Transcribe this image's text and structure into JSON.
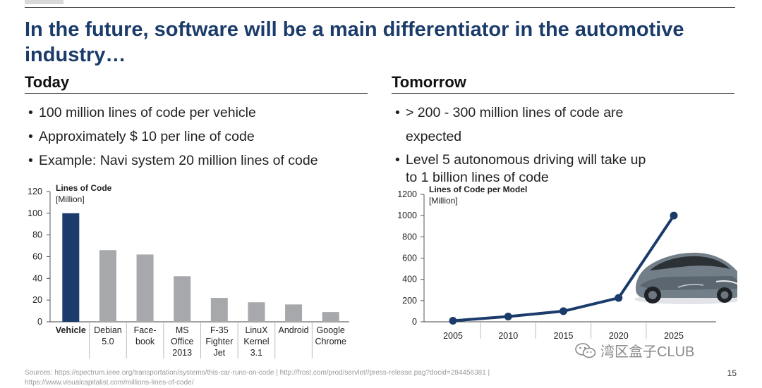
{
  "slide": {
    "title": "In the future, software will be a main differentiator in the automotive industry…",
    "page_number": "15"
  },
  "today": {
    "heading": "Today",
    "bullets": [
      "100 million lines of code per vehicle",
      "Approximately $ 10 per line of code",
      "Example: Navi system 20 million lines of code"
    ]
  },
  "tomorrow": {
    "heading": "Tomorrow",
    "bullets": [
      "> 200 - 300 million lines of code are expected",
      "Level 5 autonomous driving will take up to 1 billion lines of code"
    ]
  },
  "footer": {
    "sources": "Sources: https://spectrum.ieee.org/transportation/systems/this-car-runs-on-code | http://frost.com/prod/servlet//press-release.pag?docid=284456381 | https://www.visualcapitalist.com/millions-lines-of-code/"
  },
  "watermark": {
    "text": "湾区盒子CLUB",
    "icon": "wechat-icon"
  },
  "colors": {
    "accent": "#1b3c6b",
    "bar_highlight": "#1b3c6b",
    "bar_default": "#a6a8ab",
    "line": "#1b3c6b"
  },
  "chart_data": [
    {
      "type": "bar",
      "title": "Lines of Code",
      "unit": "[Million]",
      "categories": [
        "Vehicle",
        "Debian 5.0",
        "Face-book",
        "MS Office 2013",
        "F-35 Fighter Jet",
        "LinuX Kernel 3.1",
        "Android",
        "Google Chrome"
      ],
      "category_lines": [
        [
          "Vehicle"
        ],
        [
          "Debian",
          "5.0"
        ],
        [
          "Face-",
          "book"
        ],
        [
          "MS",
          "Office",
          "2013"
        ],
        [
          "F-35",
          "Fighter",
          "Jet"
        ],
        [
          "LinuX",
          "Kernel",
          "3.1"
        ],
        [
          "Android"
        ],
        [
          "Google",
          "Chrome"
        ]
      ],
      "values": [
        100,
        66,
        62,
        42,
        22,
        18,
        16,
        9
      ],
      "highlight_index": 0,
      "ylim": [
        0,
        120
      ],
      "yticks": [
        0,
        20,
        40,
        60,
        80,
        100,
        120
      ]
    },
    {
      "type": "line",
      "title": "Lines of Code per Model",
      "unit": "[Million]",
      "x": [
        "2005",
        "2010",
        "2015",
        "2020",
        "2025"
      ],
      "values": [
        10,
        50,
        100,
        225,
        1000
      ],
      "ylim": [
        0,
        1200
      ],
      "yticks": [
        0,
        200,
        400,
        600,
        800,
        1000,
        1200
      ]
    }
  ]
}
